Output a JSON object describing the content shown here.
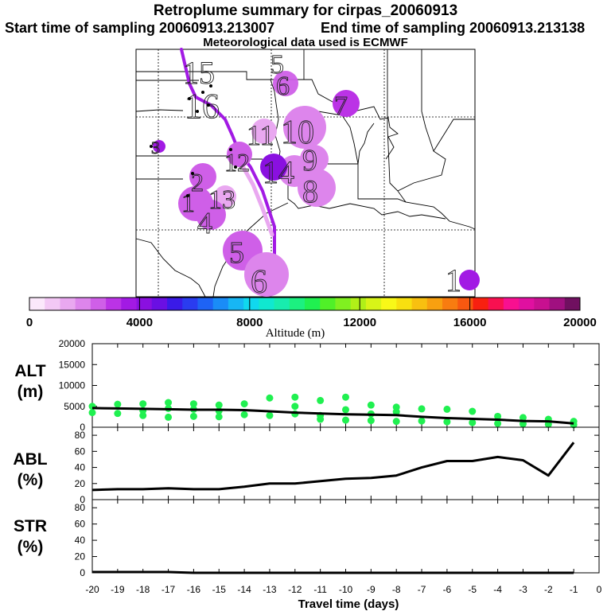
{
  "header": {
    "title": "Retroplume summary for cirpas_20060913",
    "start_label": "Start time of sampling 20060913.213007",
    "end_label": "End time of sampling 20060913.213138",
    "met_label": "Meteorological data used is ECMWF"
  },
  "colorbar": {
    "ticks": [
      "0",
      "4000",
      "8000",
      "12000",
      "16000",
      "20000"
    ],
    "label": "Altitude (m)",
    "colors": [
      "#fbe8fb",
      "#f3c8f5",
      "#e9a8f0",
      "#dd85ec",
      "#cf5fe8",
      "#bb33e6",
      "#a21ae4",
      "#8a10e0",
      "#6a0fe3",
      "#3a1ae8",
      "#2a3cf0",
      "#1e63f5",
      "#1a8cf7",
      "#17b6f4",
      "#10d8ee",
      "#10e8d0",
      "#18ecae",
      "#1cf080",
      "#20f050",
      "#50f028",
      "#80f020",
      "#b0f018",
      "#d8f418",
      "#f8f818",
      "#f8e010",
      "#f8c010",
      "#f8a010",
      "#f87c10",
      "#f85810",
      "#f82010",
      "#f81050",
      "#f81090",
      "#e010a0",
      "#c81090",
      "#a01080",
      "#701060"
    ]
  },
  "map_labels": [
    {
      "text": "1",
      "color": "#a21ae4"
    },
    {
      "text": "2",
      "color": "#cf5fe8"
    },
    {
      "text": "3",
      "color": "#cf5fe8"
    },
    {
      "text": "4",
      "color": "#cf5fe8"
    },
    {
      "text": "5",
      "color": "#cf5fe8"
    },
    {
      "text": "6",
      "color": "#dd85ec"
    },
    {
      "text": "7",
      "color": "#bb33e6"
    },
    {
      "text": "8",
      "color": "#dd85ec"
    },
    {
      "text": "9",
      "color": "#cf5fe8"
    },
    {
      "text": "10",
      "color": "#dd85ec"
    },
    {
      "text": "11",
      "color": "#e9a8f0"
    },
    {
      "text": "12",
      "color": "#dd85ec"
    },
    {
      "text": "13",
      "color": "#cf5fe8"
    },
    {
      "text": "14",
      "color": "#a21ae4"
    },
    {
      "text": "15",
      "color": "#e9a8f0"
    },
    {
      "text": "16",
      "color": "#dd85ec"
    },
    {
      "text": "5",
      "color": "#cf5fe8"
    },
    {
      "text": "6",
      "color": "#dd85ec"
    },
    {
      "text": "1",
      "color": "#a21ae4"
    },
    {
      "text": "3",
      "color": "#bb33e6"
    },
    {
      "text": "2",
      "color": "#cf5fe8"
    },
    {
      "text": "1",
      "color": "#dd85ec"
    },
    {
      "text": "4",
      "color": "#cf5fe8"
    },
    {
      "text": "8",
      "color": "#bb33e6"
    },
    {
      "text": "5",
      "color": "#cf5fe8"
    },
    {
      "text": "6",
      "color": "#cf5fe8"
    }
  ],
  "chart_data": [
    {
      "type": "scatter",
      "name": "ALT",
      "ylabel": "ALT\n(m)",
      "ylabel_lines": [
        "ALT",
        "(m)"
      ],
      "ylim": [
        0,
        20000
      ],
      "yticks": [
        "0",
        "5000",
        "10000",
        "15000",
        "20000"
      ],
      "line": {
        "x": [
          -20,
          -19,
          -18,
          -17,
          -16,
          -15,
          -14,
          -13,
          -12,
          -11,
          -10,
          -9,
          -8,
          -7,
          -6,
          -5,
          -4,
          -3,
          -2,
          -1
        ],
        "y": [
          4600,
          4500,
          4400,
          4300,
          4200,
          4200,
          4100,
          3800,
          3500,
          3300,
          3100,
          3000,
          2900,
          2500,
          2200,
          2000,
          1800,
          1500,
          1400,
          900
        ]
      },
      "points_color": "#20f050",
      "points": [
        {
          "x": -20,
          "y": 5000
        },
        {
          "x": -20,
          "y": 3500
        },
        {
          "x": -19,
          "y": 5500
        },
        {
          "x": -19,
          "y": 3300
        },
        {
          "x": -18,
          "y": 5600
        },
        {
          "x": -18,
          "y": 4000
        },
        {
          "x": -18,
          "y": 2800
        },
        {
          "x": -17,
          "y": 5900
        },
        {
          "x": -17,
          "y": 4500
        },
        {
          "x": -17,
          "y": 2400
        },
        {
          "x": -16,
          "y": 5600
        },
        {
          "x": -16,
          "y": 4300
        },
        {
          "x": -16,
          "y": 2600
        },
        {
          "x": -15,
          "y": 5300
        },
        {
          "x": -15,
          "y": 3900
        },
        {
          "x": -15,
          "y": 2500
        },
        {
          "x": -14,
          "y": 5600
        },
        {
          "x": -14,
          "y": 3000
        },
        {
          "x": -13,
          "y": 7000
        },
        {
          "x": -13,
          "y": 2800
        },
        {
          "x": -12,
          "y": 7200
        },
        {
          "x": -12,
          "y": 5000
        },
        {
          "x": -12,
          "y": 3200
        },
        {
          "x": -11,
          "y": 6400
        },
        {
          "x": -11,
          "y": 2800
        },
        {
          "x": -11,
          "y": 1900
        },
        {
          "x": -10,
          "y": 7200
        },
        {
          "x": -10,
          "y": 4200
        },
        {
          "x": -10,
          "y": 1700
        },
        {
          "x": -9,
          "y": 5300
        },
        {
          "x": -9,
          "y": 3200
        },
        {
          "x": -9,
          "y": 1600
        },
        {
          "x": -8,
          "y": 4800
        },
        {
          "x": -8,
          "y": 3700
        },
        {
          "x": -8,
          "y": 1400
        },
        {
          "x": -7,
          "y": 4400
        },
        {
          "x": -7,
          "y": 1500
        },
        {
          "x": -6,
          "y": 4300
        },
        {
          "x": -6,
          "y": 1300
        },
        {
          "x": -5,
          "y": 3800
        },
        {
          "x": -5,
          "y": 1100
        },
        {
          "x": -4,
          "y": 2600
        },
        {
          "x": -4,
          "y": 900
        },
        {
          "x": -3,
          "y": 2300
        },
        {
          "x": -3,
          "y": 800
        },
        {
          "x": -2,
          "y": 1900
        },
        {
          "x": -2,
          "y": 700
        },
        {
          "x": -1,
          "y": 1400
        },
        {
          "x": -1,
          "y": 600
        }
      ]
    },
    {
      "type": "line",
      "name": "ABL",
      "ylabel_lines": [
        "ABL",
        "(%)"
      ],
      "ylim": [
        0,
        90
      ],
      "yticks": [
        "0",
        "20",
        "40",
        "60",
        "80"
      ],
      "x": [
        -20,
        -19,
        -18,
        -17,
        -16,
        -15,
        -14,
        -13,
        -12,
        -11,
        -10,
        -9,
        -8,
        -7,
        -6,
        -5,
        -4,
        -3,
        -2,
        -1
      ],
      "y": [
        12,
        13,
        13,
        14,
        13,
        13,
        16,
        20,
        20,
        23,
        26,
        27,
        30,
        40,
        48,
        48,
        53,
        49,
        30,
        71
      ]
    },
    {
      "type": "line",
      "name": "STR",
      "ylabel_lines": [
        "STR",
        "(%)"
      ],
      "xlabel": "Travel time (days)",
      "ylim": [
        0,
        90
      ],
      "yticks": [
        "0",
        "20",
        "40",
        "60",
        "80"
      ],
      "xticks": [
        "-20",
        "-19",
        "-18",
        "-17",
        "-16",
        "-15",
        "-14",
        "-13",
        "-12",
        "-11",
        "-10",
        "-9",
        "-8",
        "-7",
        "-6",
        "-5",
        "-4",
        "-3",
        "-2",
        "-1",
        "0"
      ],
      "x": [
        -20,
        -19,
        -18,
        -17,
        -16,
        -15,
        -14,
        -13,
        -12,
        -11,
        -10,
        -9,
        -8,
        -7,
        -6,
        -5,
        -4,
        -3,
        -2,
        -1
      ],
      "y": [
        1,
        1,
        1,
        1,
        0,
        0,
        0,
        0,
        0,
        0,
        0,
        0,
        0,
        0,
        0,
        0,
        0,
        0,
        0,
        0
      ]
    }
  ]
}
